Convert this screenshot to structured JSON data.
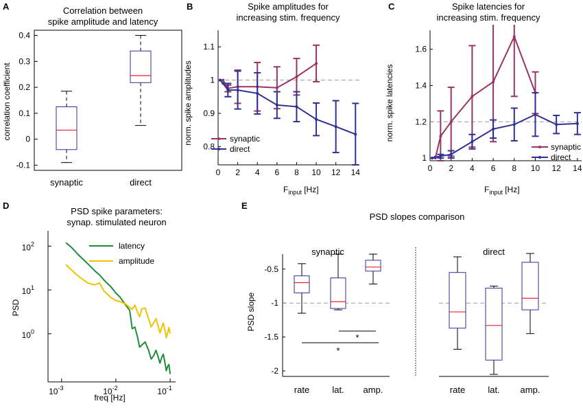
{
  "colors": {
    "synaptic": "#993366",
    "direct": "#2e3192",
    "latency": "#1f8c3a",
    "amplitude": "#f2c200",
    "median": "#e8212e",
    "box": "#2e3192",
    "dashed": "#999999"
  },
  "chart_data": [
    {
      "panel": "A",
      "type": "box",
      "title": [
        "Correlation between",
        "spike amplitude and latency"
      ],
      "ylabel": "correlation coefficient",
      "ylim": [
        -0.1,
        0.4
      ],
      "yticks": [
        "-0.1",
        "0",
        "0.1",
        "0.2",
        "0.3",
        "0.4"
      ],
      "categories": [
        "synaptic",
        "direct"
      ],
      "boxes": [
        {
          "min": -0.09,
          "q1": -0.04,
          "median": 0.035,
          "q3": 0.125,
          "max": 0.185
        },
        {
          "min": 0.053,
          "q1": 0.218,
          "median": 0.245,
          "q3": 0.34,
          "max": 0.4
        }
      ]
    },
    {
      "panel": "B",
      "type": "line",
      "title": [
        "Spike amplitudes for",
        "increasing stim. frequency"
      ],
      "ylabel": "norm. spike amplitudes",
      "xlabel": "F",
      "xlabel_sub": "input",
      "xlabel_unit": " [Hz]",
      "xlim": [
        0,
        14
      ],
      "ylim": [
        0.74,
        1.15
      ],
      "xticks": [
        "0",
        "2",
        "4",
        "6",
        "8",
        "10",
        "12",
        "14"
      ],
      "yticks": [
        "0.8",
        "0.9",
        "1",
        "1.1"
      ],
      "ref_line": 1,
      "legend": [
        "synaptic",
        "direct"
      ],
      "series": [
        {
          "name": "synaptic",
          "x": [
            0.2,
            0.5,
            1,
            2,
            4,
            6,
            8,
            10
          ],
          "y": [
            1.0,
            1.0,
            0.975,
            0.98,
            0.98,
            0.977,
            1.01,
            1.05
          ],
          "err": [
            0,
            0,
            0.01,
            0.05,
            0.073,
            0.063,
            0.055,
            0.055
          ]
        },
        {
          "name": "direct",
          "x": [
            0.2,
            0.5,
            1,
            2,
            4,
            6,
            8,
            10,
            12,
            14
          ],
          "y": [
            1.0,
            0.99,
            0.97,
            0.97,
            0.96,
            0.925,
            0.92,
            0.882,
            0.86,
            0.837
          ],
          "err": [
            0,
            0,
            0.02,
            0.057,
            0.062,
            0.04,
            0.045,
            0.049,
            0.078,
            0.093
          ]
        }
      ]
    },
    {
      "panel": "C",
      "type": "line",
      "title": [
        "Spike latencies for",
        "increasing stim. frequency"
      ],
      "ylabel": "norm. spike latencies",
      "xlabel": "F",
      "xlabel_sub": "input",
      "xlabel_unit": " [Hz]",
      "xlim": [
        0,
        14
      ],
      "ylim": [
        0.98,
        1.7
      ],
      "xticks": [
        "0",
        "2",
        "4",
        "6",
        "8",
        "10",
        "12",
        "14"
      ],
      "yticks": [
        "1",
        "1.2",
        "1.4",
        "1.6"
      ],
      "ref_line": 1.2,
      "legend": [
        "synaptic",
        "direct"
      ],
      "series": [
        {
          "name": "synaptic",
          "x": [
            0.2,
            0.5,
            1,
            2,
            4,
            6,
            8,
            10
          ],
          "y": [
            1.0,
            1.0,
            1.12,
            1.2,
            1.34,
            1.42,
            1.67,
            1.36
          ],
          "err": [
            0,
            0,
            0.14,
            0.19,
            0.28,
            0.33,
            0.33,
            0.115
          ]
        },
        {
          "name": "direct",
          "x": [
            0.2,
            0.5,
            1,
            2,
            4,
            6,
            8,
            10,
            12,
            14
          ],
          "y": [
            1.0,
            1.005,
            1.01,
            1.02,
            1.09,
            1.16,
            1.185,
            1.24,
            1.185,
            1.19
          ],
          "err": [
            0,
            0,
            0.01,
            0.02,
            0.04,
            0.05,
            0.09,
            0.12,
            0.05,
            0.06
          ]
        }
      ]
    },
    {
      "panel": "D",
      "type": "line",
      "title": [
        "PSD spike parameters:",
        "synap. stimulated neuron"
      ],
      "ylabel": "PSD",
      "xlabel": "freq [Hz]",
      "xscale": "log",
      "yscale": "log",
      "xticks": [
        {
          "base": "10",
          "exp": "-3"
        },
        {
          "base": "10",
          "exp": "-2"
        },
        {
          "base": "10",
          "exp": "-1"
        }
      ],
      "yticks": [
        {
          "base": "10",
          "exp": "0"
        },
        {
          "base": "10",
          "exp": "1"
        },
        {
          "base": "10",
          "exp": "2"
        }
      ],
      "legend": [
        "latency",
        "amplitude"
      ],
      "series": [
        {
          "name": "latency",
          "x": [
            0.0012,
            0.0015,
            0.002,
            0.003,
            0.004,
            0.005,
            0.006,
            0.007,
            0.008,
            0.01,
            0.012,
            0.015,
            0.018,
            0.02,
            0.025,
            0.03,
            0.04,
            0.05,
            0.06,
            0.07,
            0.08,
            0.09,
            0.1
          ],
          "y": [
            120,
            95,
            65,
            40,
            28,
            22,
            17,
            14,
            12,
            8.5,
            6.8,
            4.6,
            3.4,
            1.3,
            0.85,
            0.55,
            0.42,
            0.32,
            0.3,
            0.29,
            0.22,
            0.18,
            0.12
          ]
        },
        {
          "name": "amplitude",
          "x": [
            0.0012,
            0.0015,
            0.002,
            0.003,
            0.004,
            0.005,
            0.006,
            0.008,
            0.01,
            0.012,
            0.015,
            0.02,
            0.025,
            0.03,
            0.04,
            0.05,
            0.06,
            0.07,
            0.08,
            0.09,
            0.1
          ],
          "y": [
            38,
            29,
            21,
            14.5,
            13,
            14.5,
            9.5,
            6.8,
            5.7,
            5.4,
            4.8,
            3.6,
            3.1,
            3.7,
            2.2,
            1.8,
            1.5,
            1.4,
            1.2,
            1.05,
            1.0
          ]
        }
      ]
    },
    {
      "panel": "E",
      "type": "box",
      "title": "PSD slopes comparison",
      "ylabel": "PSD slope",
      "ylim": [
        -2.05,
        -0.3
      ],
      "yticks": [
        "-0.5",
        "-1",
        "-1.5",
        "-2"
      ],
      "ref_line": -1,
      "groups": [
        {
          "name": "synaptic",
          "categories": [
            "rate",
            "lat.",
            "amp."
          ],
          "boxes": [
            {
              "min": -1.15,
              "q1": -0.85,
              "median": -0.7,
              "q3": -0.6,
              "max": -0.42
            },
            {
              "min": -1.1,
              "q1": -1.08,
              "median": -0.98,
              "q3": -0.63,
              "max": -0.28
            },
            {
              "min": -0.72,
              "q1": -0.53,
              "median": -0.47,
              "q3": -0.37,
              "max": -0.28
            }
          ],
          "significance": [
            "*",
            "*"
          ]
        },
        {
          "name": "direct",
          "categories": [
            "rate",
            "lat.",
            "amp."
          ],
          "boxes": [
            {
              "min": -1.68,
              "q1": -1.37,
              "median": -1.13,
              "q3": -0.55,
              "max": -0.32
            },
            {
              "min": -2.05,
              "q1": -1.84,
              "median": -1.33,
              "q3": -0.78,
              "max": -0.75
            },
            {
              "min": -1.45,
              "q1": -1.1,
              "median": -0.93,
              "q3": -0.4,
              "max": -0.27
            }
          ]
        }
      ]
    }
  ]
}
